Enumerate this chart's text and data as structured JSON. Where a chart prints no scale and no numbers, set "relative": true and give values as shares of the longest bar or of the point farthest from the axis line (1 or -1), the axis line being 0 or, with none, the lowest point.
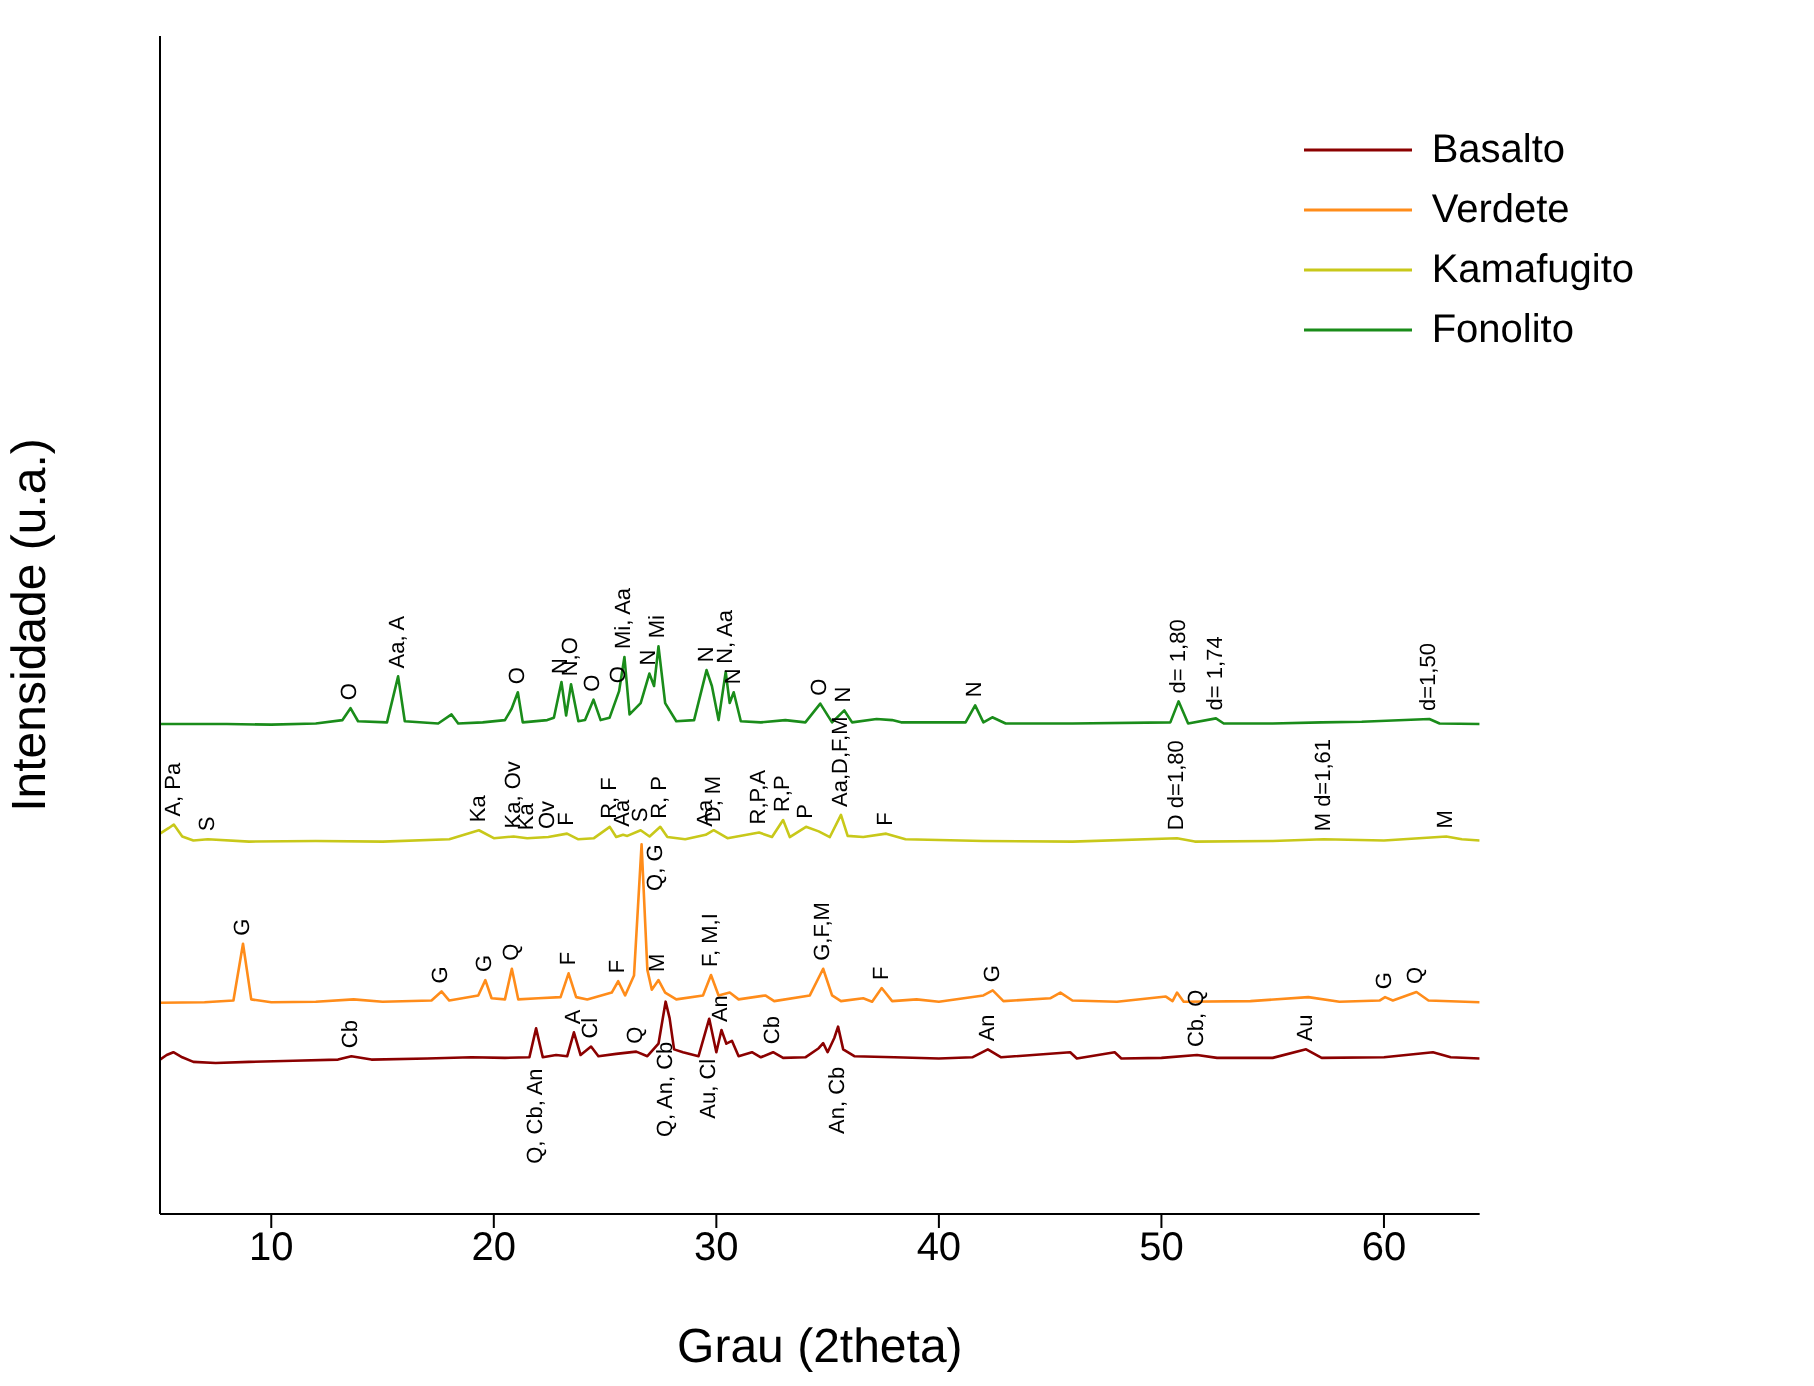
{
  "chart_data": {
    "type": "line",
    "xlabel": "Grau (2theta)",
    "ylabel": "Intensidade (u.a.)",
    "relative": true,
    "xlim": [
      5,
      64.3
    ],
    "xticks": [
      10,
      20,
      30,
      40,
      50,
      60
    ],
    "legend": "top right",
    "grid": false,
    "marker": "none",
    "line_style": "solid",
    "series": [
      {
        "name": "Basalto",
        "color": "#8b0000",
        "x": [
          5,
          5.3,
          5.6,
          6,
          6.5,
          7.5,
          9,
          11,
          13,
          13.6,
          14.5,
          17,
          19,
          20.5,
          21.6,
          21.9,
          22.2,
          22.8,
          23.3,
          23.6,
          23.9,
          24.37,
          24.7,
          25.5,
          26.4,
          26.9,
          27.4,
          27.72,
          27.9,
          28.1,
          28.5,
          29.2,
          29.68,
          30,
          30.23,
          30.45,
          30.7,
          31,
          31.6,
          32,
          32.55,
          33,
          34,
          34.6,
          34.8,
          35,
          35.3,
          35.47,
          35.7,
          36.2,
          38,
          40,
          41.5,
          42.2,
          42.8,
          45.9,
          46.2,
          47.9,
          48.2,
          50,
          51.6,
          52.5,
          55,
          56.5,
          57.2,
          60,
          62.2,
          63,
          64.3
        ],
        "values": [
          0.272,
          0.28,
          0.285,
          0.276,
          0.268,
          0.266,
          0.268,
          0.27,
          0.272,
          0.278,
          0.272,
          0.274,
          0.276,
          0.275,
          0.276,
          0.327,
          0.276,
          0.28,
          0.278,
          0.32,
          0.28,
          0.295,
          0.278,
          0.282,
          0.286,
          0.278,
          0.3,
          0.374,
          0.345,
          0.29,
          0.285,
          0.278,
          0.344,
          0.285,
          0.324,
          0.3,
          0.305,
          0.278,
          0.285,
          0.276,
          0.285,
          0.275,
          0.276,
          0.292,
          0.301,
          0.285,
          0.31,
          0.33,
          0.29,
          0.278,
          0.276,
          0.274,
          0.276,
          0.29,
          0.276,
          0.285,
          0.274,
          0.285,
          0.274,
          0.275,
          0.28,
          0.275,
          0.275,
          0.29,
          0.275,
          0.276,
          0.285,
          0.276,
          0.274
        ]
      },
      {
        "name": "Verdete",
        "color": "#ff8c1a",
        "x": [
          5,
          7,
          8.3,
          8.73,
          9.1,
          10,
          12,
          13.7,
          15,
          17.2,
          17.65,
          18,
          19.3,
          19.62,
          19.9,
          20.5,
          20.81,
          21.1,
          22,
          23,
          23.36,
          23.7,
          24.2,
          25.3,
          25.59,
          25.9,
          26.3,
          26.64,
          26.9,
          27.1,
          27.4,
          27.7,
          28.2,
          29.4,
          29.76,
          30.1,
          30.6,
          31,
          32.2,
          32.6,
          34.2,
          34.8,
          35.2,
          35.6,
          36.6,
          37,
          37.43,
          37.9,
          39,
          40,
          42,
          42.42,
          42.9,
          45,
          45.46,
          46,
          48,
          50.2,
          50.5,
          50.7,
          51,
          54,
          56.6,
          58,
          59.8,
          60.05,
          60.4,
          61.46,
          62,
          64.3
        ],
        "values": [
          0.372,
          0.373,
          0.376,
          0.476,
          0.378,
          0.373,
          0.374,
          0.378,
          0.374,
          0.376,
          0.392,
          0.376,
          0.385,
          0.412,
          0.38,
          0.378,
          0.432,
          0.378,
          0.38,
          0.382,
          0.424,
          0.382,
          0.378,
          0.39,
          0.41,
          0.385,
          0.42,
          0.651,
          0.43,
          0.395,
          0.412,
          0.39,
          0.378,
          0.385,
          0.421,
          0.385,
          0.39,
          0.378,
          0.385,
          0.375,
          0.385,
          0.432,
          0.385,
          0.375,
          0.38,
          0.374,
          0.398,
          0.375,
          0.378,
          0.374,
          0.385,
          0.394,
          0.375,
          0.38,
          0.39,
          0.376,
          0.374,
          0.383,
          0.375,
          0.39,
          0.374,
          0.375,
          0.382,
          0.374,
          0.376,
          0.382,
          0.376,
          0.391,
          0.376,
          0.373
        ]
      },
      {
        "name": "Kamafugito",
        "color": "#c8c81a",
        "x": [
          5,
          5.4,
          5.62,
          6,
          6.5,
          7.15,
          9,
          12,
          15,
          18,
          19.33,
          20,
          20.89,
          21.5,
          22.45,
          23.29,
          23.8,
          24.5,
          25.21,
          25.5,
          25.81,
          26,
          26.6,
          27,
          27.48,
          27.8,
          28.6,
          29.52,
          29.88,
          30.5,
          31.92,
          32.5,
          33,
          33.3,
          34.03,
          34.6,
          35.1,
          35.6,
          35.9,
          36.6,
          37.63,
          38.5,
          42,
          46,
          50.7,
          51.5,
          55,
          57.29,
          60,
          62.8,
          63.5,
          64.3
        ],
        "values": [
          0.67,
          0.68,
          0.686,
          0.665,
          0.658,
          0.66,
          0.656,
          0.657,
          0.656,
          0.66,
          0.676,
          0.662,
          0.665,
          0.662,
          0.664,
          0.67,
          0.66,
          0.662,
          0.682,
          0.664,
          0.668,
          0.666,
          0.676,
          0.665,
          0.682,
          0.664,
          0.66,
          0.668,
          0.676,
          0.662,
          0.672,
          0.664,
          0.694,
          0.664,
          0.682,
          0.674,
          0.664,
          0.703,
          0.666,
          0.664,
          0.67,
          0.66,
          0.657,
          0.656,
          0.662,
          0.656,
          0.657,
          0.66,
          0.658,
          0.665,
          0.66,
          0.658
        ]
      },
      {
        "name": "Fonolito",
        "color": "#1a8c1a",
        "x": [
          5,
          8,
          10,
          12,
          13.2,
          13.56,
          13.9,
          15.2,
          15.7,
          16,
          17.5,
          18.1,
          18.4,
          19.5,
          20.5,
          20.8,
          21.08,
          21.3,
          22.4,
          22.7,
          23.04,
          23.25,
          23.47,
          23.8,
          24.1,
          24.48,
          24.8,
          25.2,
          25.63,
          25.87,
          26.1,
          26.6,
          26.99,
          27.2,
          27.4,
          27.7,
          28.2,
          29,
          29.56,
          29.8,
          30.1,
          30.42,
          30.6,
          30.78,
          31.1,
          32,
          33.1,
          34,
          34.67,
          35.2,
          35.75,
          36.1,
          37.2,
          37.9,
          38.3,
          41.2,
          41.63,
          42,
          42.4,
          43,
          46,
          50.4,
          50.77,
          51.2,
          52.45,
          52.8,
          55,
          57.2,
          59,
          62.04,
          62.5,
          64.3
        ],
        "values": [
          0.863,
          0.863,
          0.862,
          0.864,
          0.87,
          0.891,
          0.868,
          0.866,
          0.947,
          0.868,
          0.864,
          0.88,
          0.864,
          0.866,
          0.87,
          0.89,
          0.919,
          0.866,
          0.87,
          0.874,
          0.937,
          0.878,
          0.933,
          0.868,
          0.87,
          0.906,
          0.87,
          0.874,
          0.921,
          0.981,
          0.88,
          0.9,
          0.952,
          0.93,
          1,
          0.9,
          0.868,
          0.87,
          0.958,
          0.93,
          0.87,
          0.955,
          0.9,
          0.919,
          0.868,
          0.866,
          0.87,
          0.866,
          0.899,
          0.866,
          0.887,
          0.866,
          0.872,
          0.87,
          0.866,
          0.866,
          0.896,
          0.866,
          0.875,
          0.864,
          0.864,
          0.866,
          0.903,
          0.864,
          0.873,
          0.864,
          0.864,
          0.866,
          0.867,
          0.872,
          0.864,
          0.863
        ]
      }
    ],
    "annotations": [
      {
        "text": "O",
        "x": 13.56,
        "y": 0.891
      },
      {
        "text": "Aa, A",
        "x": 15.7,
        "y": 0.947
      },
      {
        "text": "O",
        "x": 21.08,
        "y": 0.919
      },
      {
        "text": "N",
        "x": 23.04,
        "y": 0.937
      },
      {
        "text": "N,O",
        "x": 23.47,
        "y": 0.933
      },
      {
        "text": "O",
        "x": 24.48,
        "y": 0.906
      },
      {
        "text": "O",
        "x": 25.63,
        "y": 0.921
      },
      {
        "text": "Mi, Aa",
        "x": 25.87,
        "y": 0.981
      },
      {
        "text": "N",
        "x": 26.99,
        "y": 0.952
      },
      {
        "text": "Mi",
        "x": 27.4,
        "y": 1
      },
      {
        "text": "N",
        "x": 29.56,
        "y": 0.958
      },
      {
        "text": "N, Aa",
        "x": 30.42,
        "y": 0.955
      },
      {
        "text": "N",
        "x": 30.78,
        "y": 0.919
      },
      {
        "text": "O",
        "x": 34.67,
        "y": 0.899
      },
      {
        "text": "N",
        "x": 35.75,
        "y": 0.887
      },
      {
        "text": "N",
        "x": 41.63,
        "y": 0.896
      },
      {
        "text": "d= 1,80",
        "x": 50.77,
        "y": 0.903
      },
      {
        "text": "d= 1,74",
        "x": 52.45,
        "y": 0.873
      },
      {
        "text": "d=1,50",
        "x": 62.04,
        "y": 0.872
      },
      {
        "text": "A, Pa",
        "x": 5.62,
        "y": 0.686
      },
      {
        "text": "S",
        "x": 7.15,
        "y": 0.66
      },
      {
        "text": "Ka",
        "x": 19.33,
        "y": 0.676
      },
      {
        "text": "Ka, Ov",
        "x": 20.89,
        "y": 0.665
      },
      {
        "text": "Ka",
        "x": 21.5,
        "y": 0.662
      },
      {
        "text": "Ov",
        "x": 22.45,
        "y": 0.664
      },
      {
        "text": "F",
        "x": 23.29,
        "y": 0.67
      },
      {
        "text": "R, F",
        "x": 25.21,
        "y": 0.682
      },
      {
        "text": "Aa",
        "x": 25.81,
        "y": 0.668
      },
      {
        "text": "S",
        "x": 26.6,
        "y": 0.676
      },
      {
        "text": "R, P",
        "x": 27.48,
        "y": 0.682
      },
      {
        "text": "Aa",
        "x": 29.52,
        "y": 0.668
      },
      {
        "text": "D, M",
        "x": 29.88,
        "y": 0.676
      },
      {
        "text": "R,P,A",
        "x": 31.92,
        "y": 0.672
      },
      {
        "text": "R,P",
        "x": 33,
        "y": 0.694
      },
      {
        "text": "P",
        "x": 34.03,
        "y": 0.682
      },
      {
        "text": "Aa,D,F,M",
        "x": 35.6,
        "y": 0.703
      },
      {
        "text": "F",
        "x": 37.63,
        "y": 0.67
      },
      {
        "text": "D d=1,80",
        "x": 50.7,
        "y": 0.662
      },
      {
        "text": "M d=1,61",
        "x": 57.29,
        "y": 0.66
      },
      {
        "text": "M",
        "x": 62.8,
        "y": 0.665
      },
      {
        "text": "G",
        "x": 8.73,
        "y": 0.476
      },
      {
        "text": "G",
        "x": 17.65,
        "y": 0.392
      },
      {
        "text": "G",
        "x": 19.62,
        "y": 0.412
      },
      {
        "text": "Q",
        "x": 20.81,
        "y": 0.432
      },
      {
        "text": "F",
        "x": 23.36,
        "y": 0.424
      },
      {
        "text": "F",
        "x": 25.59,
        "y": 0.41
      },
      {
        "text": "Q, G",
        "x": 26.64,
        "y": 0.651
      },
      {
        "text": "M",
        "x": 27.4,
        "y": 0.412
      },
      {
        "text": "F, M,I",
        "x": 29.76,
        "y": 0.421
      },
      {
        "text": "G,F,M",
        "x": 34.8,
        "y": 0.432
      },
      {
        "text": "F",
        "x": 37.43,
        "y": 0.398
      },
      {
        "text": "G",
        "x": 42.42,
        "y": 0.394
      },
      {
        "text": "G",
        "x": 60.05,
        "y": 0.382
      },
      {
        "text": "Q",
        "x": 61.46,
        "y": 0.391
      },
      {
        "text": "Cb",
        "x": 13.6,
        "y": 0.278
      },
      {
        "text": "Q, Cb, An",
        "x": 21.9,
        "y": 0.327
      },
      {
        "text": "A",
        "x": 23.6,
        "y": 0.32
      },
      {
        "text": "Cl",
        "x": 24.37,
        "y": 0.295
      },
      {
        "text": "Q",
        "x": 26.4,
        "y": 0.286
      },
      {
        "text": "Q, An, Cb",
        "x": 27.72,
        "y": 0.374
      },
      {
        "text": "Au, Cl",
        "x": 29.68,
        "y": 0.344
      },
      {
        "text": "An",
        "x": 30.23,
        "y": 0.324
      },
      {
        "text": "Cb",
        "x": 32.55,
        "y": 0.285
      },
      {
        "text": "An, Cb",
        "x": 35.47,
        "y": 0.33
      },
      {
        "text": "An",
        "x": 42.2,
        "y": 0.29
      },
      {
        "text": "Cb, Q",
        "x": 51.6,
        "y": 0.28
      },
      {
        "text": "Au",
        "x": 56.5,
        "y": 0.29
      }
    ]
  }
}
